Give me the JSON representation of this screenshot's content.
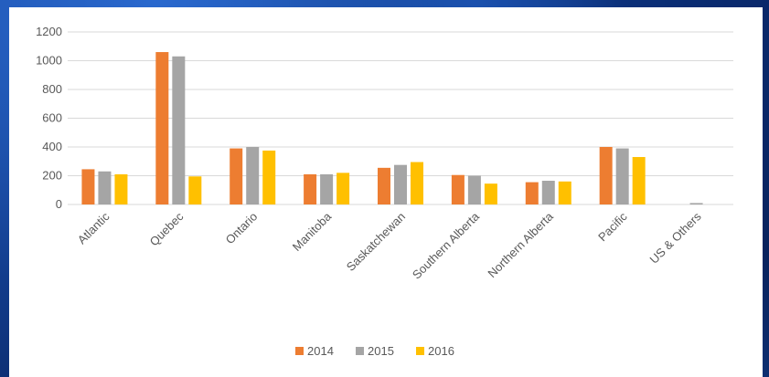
{
  "chart_data": {
    "type": "bar",
    "categories": [
      "Atlantic",
      "Quebec",
      "Ontario",
      "Manitoba",
      "Saskatchewan",
      "Southern Alberta",
      "Northern Alberta",
      "Pacific",
      "US & Others"
    ],
    "series": [
      {
        "name": "2014",
        "color": "#ed7d31",
        "values": [
          245,
          1060,
          390,
          210,
          255,
          205,
          155,
          400,
          0
        ]
      },
      {
        "name": "2015",
        "color": "#a5a5a5",
        "values": [
          230,
          1030,
          400,
          210,
          275,
          200,
          165,
          390,
          10
        ]
      },
      {
        "name": "2016",
        "color": "#ffc000",
        "values": [
          210,
          195,
          375,
          220,
          295,
          145,
          160,
          330,
          0
        ]
      }
    ],
    "title": "",
    "xlabel": "",
    "ylabel": "",
    "ylim": [
      0,
      1200
    ],
    "yticks": [
      0,
      200,
      400,
      600,
      800,
      1000,
      1200
    ],
    "grid": true,
    "legend": "bottom"
  }
}
